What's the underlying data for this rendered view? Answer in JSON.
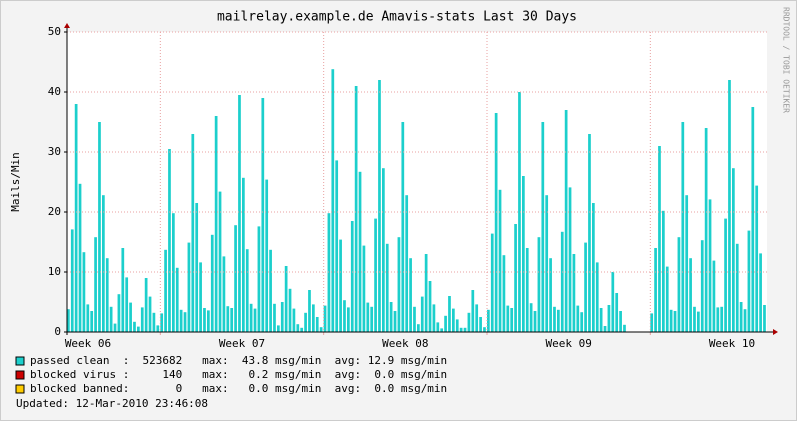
{
  "chart_data": {
    "type": "bar",
    "title": "mailrelay.example.de Amavis-stats Last 30 Days",
    "y_label": "Mails/Min",
    "side_text": "RRDTOOL / TOBI OETIKER",
    "footer": "Updated: 12-Mar-2010 23:46:08",
    "xlim": [
      0,
      30
    ],
    "xticks": [
      {
        "value": 0.9,
        "label": "Week 06"
      },
      {
        "value": 7.5,
        "label": "Week 07"
      },
      {
        "value": 14.5,
        "label": "Week 08"
      },
      {
        "value": 21.5,
        "label": "Week 09"
      },
      {
        "value": 28.5,
        "label": "Week 10"
      }
    ],
    "xgrid": [
      4,
      11,
      18,
      25
    ],
    "ylim": [
      0,
      50
    ],
    "yticks": [
      0,
      10,
      20,
      30,
      40,
      50
    ],
    "grid": true,
    "series": [
      {
        "name": "passed clean  :",
        "summary": "  523682   max:  43.8 msg/min  avg: 12.9 msg/min",
        "color": "#1ccfcc",
        "values": [
          3.8,
          17.1,
          38,
          24.7,
          13.3,
          4.6,
          3.5,
          15.8,
          35,
          22.8,
          12.3,
          4.2,
          1.4,
          6.3,
          14,
          9.1,
          4.9,
          1.7,
          0.9,
          4.1,
          9,
          5.9,
          3.2,
          1.1,
          3.1,
          13.7,
          30.5,
          19.8,
          10.7,
          3.7,
          3.3,
          14.9,
          33,
          21.5,
          11.6,
          4,
          3.6,
          16.2,
          36,
          23.4,
          12.6,
          4.3,
          4,
          17.8,
          39.5,
          25.7,
          13.8,
          4.7,
          3.9,
          17.6,
          39,
          25.4,
          13.7,
          4.7,
          1.1,
          5,
          11,
          7.2,
          3.9,
          1.3,
          0.7,
          3.2,
          7,
          4.6,
          2.5,
          0.8,
          4.4,
          19.8,
          43.8,
          28.6,
          15.4,
          5.3,
          4.1,
          18.5,
          41,
          26.7,
          14.4,
          4.9,
          4.2,
          18.9,
          42,
          27.3,
          14.7,
          5,
          3.5,
          15.8,
          35,
          22.8,
          12.3,
          4.2,
          1.3,
          5.9,
          13,
          8.5,
          4.6,
          1.6,
          0.6,
          2.7,
          6,
          3.9,
          2.1,
          0.7,
          0.7,
          3.2,
          7,
          4.6,
          2.5,
          0.8,
          3.7,
          16.4,
          36.5,
          23.7,
          12.8,
          4.4,
          4,
          18,
          40,
          26,
          14,
          4.8,
          3.5,
          15.8,
          35,
          22.8,
          12.3,
          4.2,
          3.7,
          16.7,
          37,
          24.1,
          13,
          4.4,
          3.3,
          14.9,
          33,
          21.5,
          11.6,
          4,
          1,
          4.5,
          10,
          6.5,
          3.5,
          1.2,
          0,
          0,
          0,
          0,
          0,
          0,
          3.1,
          14,
          31,
          20.2,
          10.9,
          3.7,
          3.5,
          15.8,
          35,
          22.8,
          12.3,
          4.2,
          3.4,
          15.3,
          34,
          22.1,
          11.9,
          4.1,
          4.2,
          18.9,
          42,
          27.3,
          14.7,
          5,
          3.8,
          16.9,
          37.5,
          24.4,
          13.1,
          4.5
        ]
      },
      {
        "name": "blocked virus :",
        "summary": "     140   max:   0.2 msg/min  avg:  0.0 msg/min",
        "color": "#cc0000"
      },
      {
        "name": "blocked banned:",
        "summary": "       0   max:   0.0 msg/min  avg:  0.0 msg/min",
        "color": "#ffcc00"
      }
    ]
  }
}
